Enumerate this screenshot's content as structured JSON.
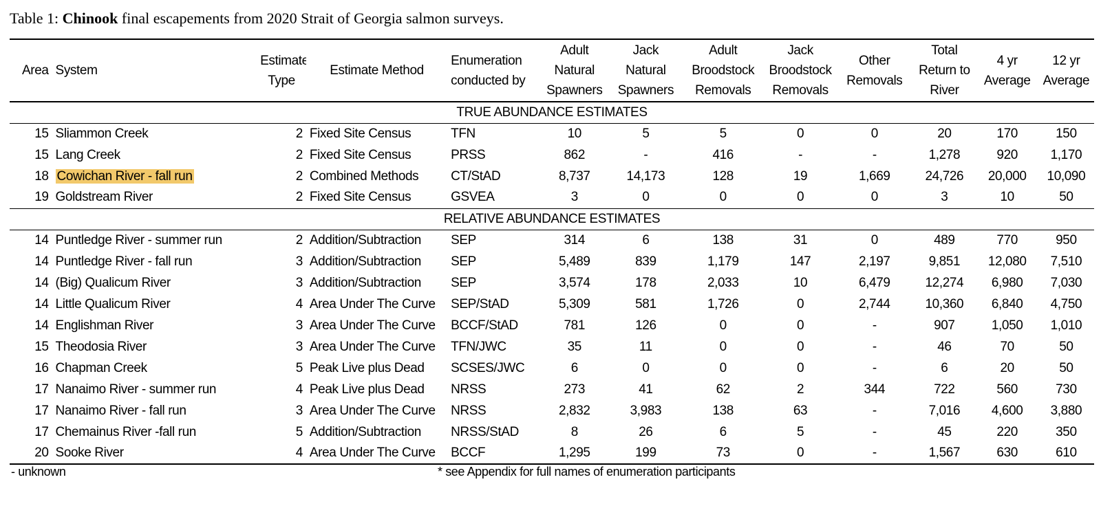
{
  "caption": {
    "prefix": "Table 1: ",
    "species": "Chinook",
    "suffix": " final escapements from 2020 Strait of Georgia salmon surveys."
  },
  "headers": {
    "area": "Area",
    "system": "System",
    "estimate_type_1": "Estimate",
    "estimate_type_2": "Type",
    "estimate_method": "Estimate Method",
    "enumeration_1": "Enumeration",
    "enumeration_2": "conducted by",
    "adult_natural_1": "Adult",
    "adult_natural_2": "Natural",
    "adult_natural_3": "Spawners",
    "jack_natural_1": "Jack",
    "jack_natural_2": "Natural",
    "jack_natural_3": "Spawners",
    "adult_brood_1": "Adult",
    "adult_brood_2": "Broodstock",
    "adult_brood_3": "Removals",
    "jack_brood_1": "Jack",
    "jack_brood_2": "Broodstock",
    "jack_brood_3": "Removals",
    "other_1": "Other",
    "other_2": "Removals",
    "total_1": "Total",
    "total_2": "Return to",
    "total_3": "River",
    "avg4_1": "4 yr",
    "avg4_2": "Average",
    "avg12_1": "12 yr",
    "avg12_2": "Average"
  },
  "sections": {
    "true_label": "TRUE ABUNDANCE ESTIMATES",
    "relative_label": "RELATIVE ABUNDANCE ESTIMATES"
  },
  "true_rows": [
    [
      "15",
      "Sliammon Creek",
      "2",
      "Fixed Site Census",
      "TFN",
      "10",
      "5",
      "5",
      "0",
      "0",
      "20",
      "170",
      "150"
    ],
    [
      "15",
      "Lang Creek",
      "2",
      "Fixed Site Census",
      "PRSS",
      "862",
      "-",
      "416",
      "-",
      "-",
      "1,278",
      "920",
      "1,170"
    ],
    [
      "18",
      "Cowichan River - fall run",
      "2",
      "Combined Methods",
      "CT/StAD",
      "8,737",
      "14,173",
      "128",
      "19",
      "1,669",
      "24,726",
      "20,000",
      "10,090"
    ],
    [
      "19",
      "Goldstream River",
      "2",
      "Fixed Site Census",
      "GSVEA",
      "3",
      "0",
      "0",
      "0",
      "0",
      "3",
      "10",
      "50"
    ]
  ],
  "relative_rows": [
    [
      "14",
      "Puntledge River - summer run",
      "2",
      "Addition/Subtraction",
      "SEP",
      "314",
      "6",
      "138",
      "31",
      "0",
      "489",
      "770",
      "950"
    ],
    [
      "14",
      "Puntledge River - fall run",
      "3",
      "Addition/Subtraction",
      "SEP",
      "5,489",
      "839",
      "1,179",
      "147",
      "2,197",
      "9,851",
      "12,080",
      "7,510"
    ],
    [
      "14",
      "(Big) Qualicum River",
      "3",
      "Addition/Subtraction",
      "SEP",
      "3,574",
      "178",
      "2,033",
      "10",
      "6,479",
      "12,274",
      "6,980",
      "7,030"
    ],
    [
      "14",
      "Little Qualicum River",
      "4",
      "Area Under The Curve",
      "SEP/StAD",
      "5,309",
      "581",
      "1,726",
      "0",
      "2,744",
      "10,360",
      "6,840",
      "4,750"
    ],
    [
      "14",
      "Englishman River",
      "3",
      "Area Under The Curve",
      "BCCF/StAD",
      "781",
      "126",
      "0",
      "0",
      "-",
      "907",
      "1,050",
      "1,010"
    ],
    [
      "15",
      "Theodosia River",
      "3",
      "Area Under The Curve",
      "TFN/JWC",
      "35",
      "11",
      "0",
      "0",
      "-",
      "46",
      "70",
      "50"
    ],
    [
      "16",
      "Chapman Creek",
      "5",
      "Peak Live plus Dead",
      "SCSES/JWC",
      "6",
      "0",
      "0",
      "0",
      "-",
      "6",
      "20",
      "50"
    ],
    [
      "17",
      "Nanaimo River - summer run",
      "4",
      "Peak Live plus Dead",
      "NRSS",
      "273",
      "41",
      "62",
      "2",
      "344",
      "722",
      "560",
      "730"
    ],
    [
      "17",
      "Nanaimo River - fall run",
      "3",
      "Area Under The Curve",
      "NRSS",
      "2,832",
      "3,983",
      "138",
      "63",
      "-",
      "7,016",
      "4,600",
      "3,880"
    ],
    [
      "17",
      "Chemainus River -fall run",
      "5",
      "Addition/Subtraction",
      "NRSS/StAD",
      "8",
      "26",
      "6",
      "5",
      "-",
      "45",
      "220",
      "350"
    ],
    [
      "20",
      "Sooke River",
      "4",
      "Area Under The Curve",
      "BCCF",
      "1,295",
      "199",
      "73",
      "0",
      "-",
      "1,567",
      "630",
      "610"
    ]
  ],
  "footnotes": {
    "unknown": "- unknown",
    "appendix": "* see Appendix for full names of enumeration participants"
  },
  "colors": {
    "highlight": "#f2c96b"
  }
}
